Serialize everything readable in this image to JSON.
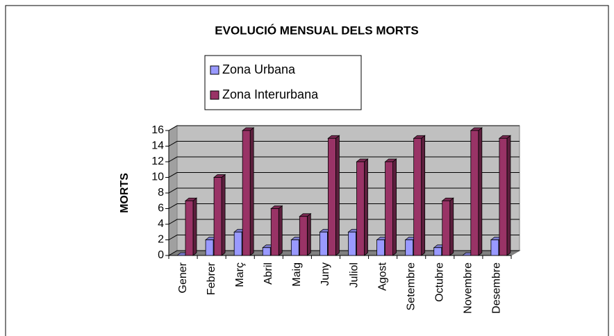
{
  "chart_data": {
    "type": "bar3d",
    "title": "EVOLUCIÓ MENSUAL DELS MORTS",
    "y_label": "MORTS",
    "categories": [
      "Gener",
      "Febrer",
      "Març",
      "Abril",
      "Maig",
      "Juny",
      "Juliol",
      "Agost",
      "Setembre",
      "Octubre",
      "Novembre",
      "Desembre"
    ],
    "series": [
      {
        "name": "Zona Urbana",
        "color": "#9999ff",
        "values": [
          0,
          2,
          3,
          1,
          2,
          3,
          3,
          2,
          2,
          1,
          0,
          2
        ]
      },
      {
        "name": "Zona Interurbana",
        "color": "#993366",
        "values": [
          7,
          10,
          16,
          6,
          5,
          15,
          12,
          12,
          15,
          7,
          16,
          15
        ]
      }
    ],
    "ylim": [
      0,
      16
    ],
    "yticks": [
      0,
      2,
      4,
      6,
      8,
      10,
      12,
      14,
      16
    ],
    "grid": true,
    "legend": "top"
  }
}
